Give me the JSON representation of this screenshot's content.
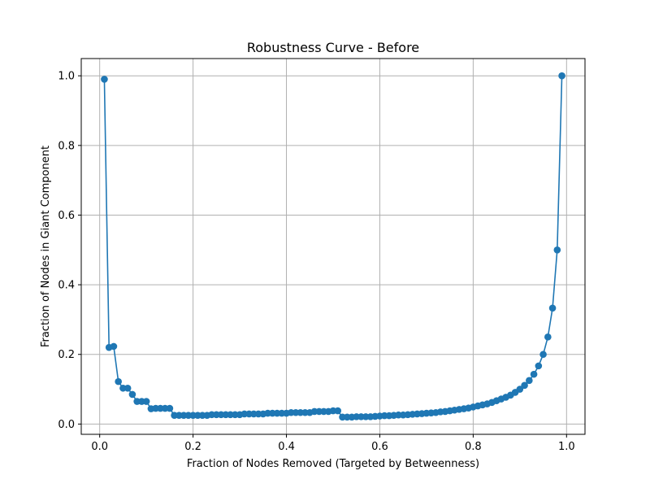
{
  "chart_data": {
    "type": "line",
    "title": "Robustness Curve - Before",
    "xlabel": "Fraction of Nodes Removed (Targeted by Betweenness)",
    "ylabel": "Fraction of Nodes in Giant Component",
    "xlim": [
      -0.0395,
      1.0395
    ],
    "ylim": [
      -0.0295,
      1.0495
    ],
    "xticks": [
      0.0,
      0.2,
      0.4,
      0.6,
      0.8,
      1.0
    ],
    "xtick_labels": [
      "0.0",
      "0.2",
      "0.4",
      "0.6",
      "0.8",
      "1.0"
    ],
    "yticks": [
      0.0,
      0.2,
      0.4,
      0.6,
      0.8,
      1.0
    ],
    "ytick_labels": [
      "0.0",
      "0.2",
      "0.4",
      "0.6",
      "0.8",
      "1.0"
    ],
    "grid": true,
    "color": "#1f77b4",
    "x": [
      0.01,
      0.02,
      0.03,
      0.04,
      0.05,
      0.06,
      0.07,
      0.08,
      0.09,
      0.1,
      0.11,
      0.12,
      0.13,
      0.14,
      0.15,
      0.16,
      0.17,
      0.18,
      0.19,
      0.2,
      0.21,
      0.22,
      0.23,
      0.24,
      0.25,
      0.26,
      0.27,
      0.28,
      0.29,
      0.3,
      0.31,
      0.32,
      0.33,
      0.34,
      0.35,
      0.36,
      0.37,
      0.38,
      0.39,
      0.4,
      0.41,
      0.42,
      0.43,
      0.44,
      0.45,
      0.46,
      0.47,
      0.48,
      0.49,
      0.5,
      0.51,
      0.52,
      0.53,
      0.54,
      0.55,
      0.56,
      0.57,
      0.58,
      0.59,
      0.6,
      0.61,
      0.62,
      0.63,
      0.64,
      0.65,
      0.66,
      0.67,
      0.68,
      0.69,
      0.7,
      0.71,
      0.72,
      0.73,
      0.74,
      0.75,
      0.76,
      0.77,
      0.78,
      0.79,
      0.8,
      0.81,
      0.82,
      0.83,
      0.84,
      0.85,
      0.86,
      0.87,
      0.88,
      0.89,
      0.9,
      0.91,
      0.92,
      0.93,
      0.94,
      0.95,
      0.96,
      0.97,
      0.98,
      0.99
    ],
    "y": [
      0.99,
      0.22,
      0.223,
      0.122,
      0.103,
      0.103,
      0.085,
      0.065,
      0.065,
      0.065,
      0.044,
      0.045,
      0.045,
      0.045,
      0.045,
      0.025,
      0.025,
      0.025,
      0.025,
      0.025,
      0.025,
      0.025,
      0.025,
      0.027,
      0.027,
      0.027,
      0.027,
      0.027,
      0.027,
      0.027,
      0.029,
      0.029,
      0.029,
      0.029,
      0.029,
      0.031,
      0.031,
      0.031,
      0.031,
      0.031,
      0.033,
      0.033,
      0.033,
      0.033,
      0.033,
      0.036,
      0.036,
      0.036,
      0.036,
      0.038,
      0.038,
      0.02,
      0.02,
      0.02,
      0.021,
      0.021,
      0.021,
      0.021,
      0.022,
      0.023,
      0.024,
      0.024,
      0.025,
      0.026,
      0.026,
      0.027,
      0.028,
      0.029,
      0.03,
      0.031,
      0.032,
      0.033,
      0.035,
      0.036,
      0.038,
      0.04,
      0.042,
      0.044,
      0.046,
      0.049,
      0.052,
      0.055,
      0.058,
      0.062,
      0.067,
      0.072,
      0.077,
      0.083,
      0.091,
      0.1,
      0.111,
      0.125,
      0.143,
      0.167,
      0.2,
      0.25,
      0.333,
      0.5,
      1.0
    ]
  }
}
